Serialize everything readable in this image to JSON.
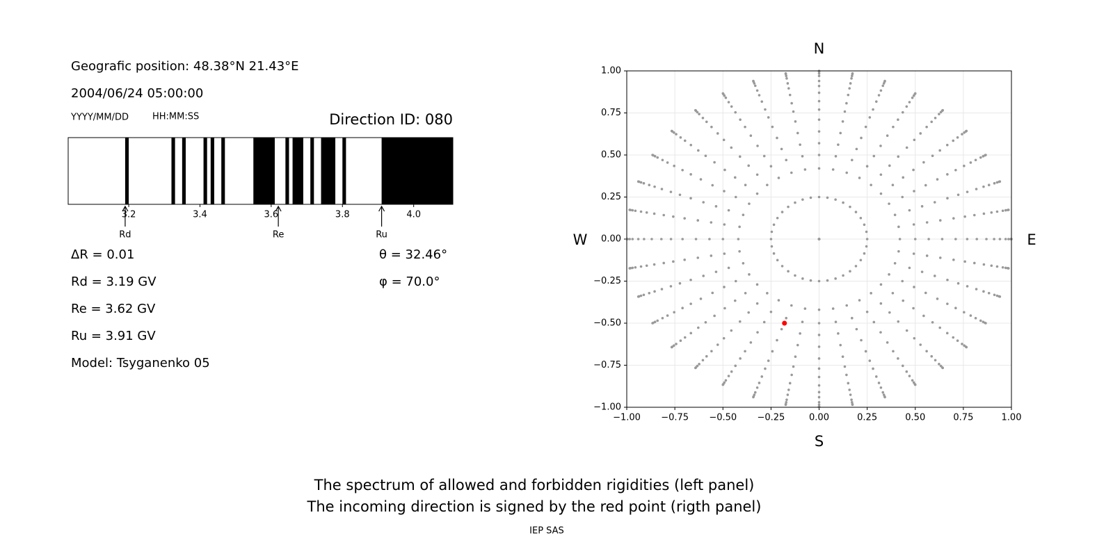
{
  "header": {
    "position": "Geografic position: 48.38°N 21.43°E",
    "datetime": "2004/06/24 05:00:00",
    "date_format": "YYYY/MM/DD",
    "time_format": "HH:MM:SS",
    "direction": "Direction ID: 080"
  },
  "chart_data": [
    {
      "type": "spectrum",
      "xlim": [
        3.03,
        4.11
      ],
      "xticks": [
        3.2,
        3.4,
        3.6,
        3.8,
        {
          "value": 4,
          "label": "4.0"
        }
      ],
      "color": "#000000",
      "forbidden": [
        [
          3.19,
          3.2
        ],
        [
          3.32,
          3.33
        ],
        [
          3.35,
          3.36
        ],
        [
          3.41,
          3.42
        ],
        [
          3.43,
          3.44
        ],
        [
          3.46,
          3.47
        ],
        [
          3.55,
          3.61
        ],
        [
          3.64,
          3.65
        ],
        [
          3.66,
          3.69
        ],
        [
          3.71,
          3.72
        ],
        [
          3.74,
          3.78
        ],
        [
          3.8,
          3.81
        ],
        [
          3.91,
          4.11
        ]
      ],
      "markers": [
        {
          "name": "Rd",
          "value": 3.19
        },
        {
          "name": "Re",
          "value": 3.62
        },
        {
          "name": "Ru",
          "value": 3.91
        }
      ]
    },
    {
      "type": "sky",
      "xlim": [
        -1,
        1
      ],
      "ylim": [
        -1,
        1
      ],
      "xticks": [
        {
          "value": -1,
          "label": "−1.00"
        },
        {
          "value": -0.75,
          "label": "−0.75"
        },
        {
          "value": -0.5,
          "label": "−0.50"
        },
        {
          "value": -0.25,
          "label": "−0.25"
        },
        {
          "value": 0,
          "label": "0.00"
        },
        0.25,
        {
          "value": 0.5,
          "label": "0.50"
        },
        0.75,
        {
          "value": 1,
          "label": "1.00"
        }
      ],
      "yticks": [
        {
          "value": -1,
          "label": "−1.00"
        },
        {
          "value": -0.75,
          "label": "−0.75"
        },
        {
          "value": -0.5,
          "label": "−0.50"
        },
        {
          "value": -0.25,
          "label": "−0.25"
        },
        {
          "value": 0,
          "label": "0.00"
        },
        0.25,
        {
          "value": 0.5,
          "label": "0.50"
        },
        0.75,
        {
          "value": 1,
          "label": "1.00"
        }
      ],
      "grid": true,
      "directions": {
        "top": "N",
        "bottom": "S",
        "left": "W",
        "right": "E"
      },
      "grid_points": {
        "color": "#999999",
        "azimuths": [
          0,
          10,
          20,
          30,
          40,
          50,
          60,
          70,
          80,
          90,
          100,
          110,
          120,
          130,
          140,
          150,
          160,
          170,
          180,
          190,
          200,
          210,
          220,
          230,
          240,
          250,
          260,
          270,
          280,
          290,
          300,
          310,
          320,
          330,
          340,
          350
        ],
        "radii": [
          0,
          0.25,
          0.42,
          0.5,
          0.57,
          0.64,
          0.71,
          0.77,
          0.82,
          0.87,
          0.91,
          0.94,
          0.97,
          0.985,
          0.996,
          1.0
        ]
      },
      "series": [
        {
          "color": "#ff0000",
          "x": [
            -0.18
          ],
          "y": [
            -0.5
          ]
        }
      ]
    }
  ],
  "parameters": {
    "left": [
      "ΔR = 0.01",
      "Rd = 3.19 GV",
      "Re = 3.62 GV",
      "Ru = 3.91 GV",
      "Model: Tsyganenko 05"
    ],
    "right": [
      "θ = 32.46°",
      "φ = 70.0°"
    ]
  },
  "caption": [
    "The spectrum of allowed and forbidden rigidities (left panel)",
    "The incoming direction is signed by the red point (rigth panel)"
  ],
  "footer": "IEP SAS"
}
